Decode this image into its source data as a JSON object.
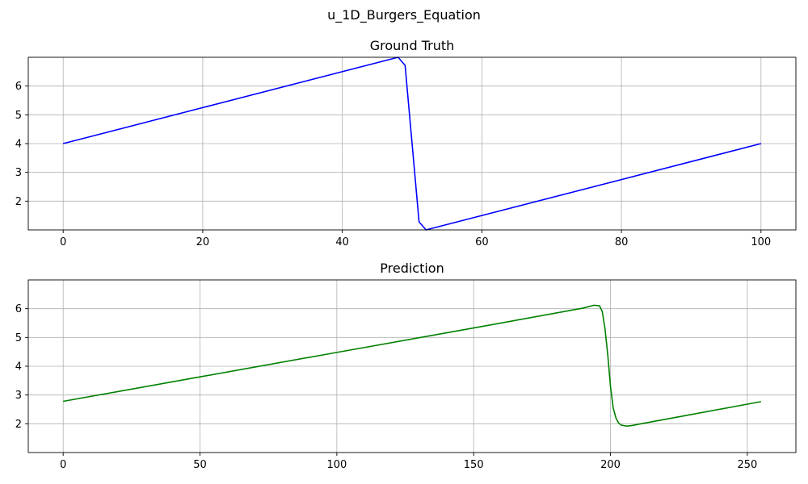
{
  "figure": {
    "suptitle": "u_1D_Burgers_Equation"
  },
  "chart_data": [
    {
      "type": "line",
      "title": "Ground Truth",
      "xlabel": "",
      "ylabel": "",
      "xlim": [
        -5,
        105
      ],
      "ylim": [
        1.0,
        7.0
      ],
      "xticks": [
        0,
        20,
        40,
        60,
        80,
        100
      ],
      "yticks": [
        2,
        3,
        4,
        5,
        6
      ],
      "grid": true,
      "series": [
        {
          "color": "#0000ff",
          "x": [
            0,
            48,
            49,
            51,
            52,
            100
          ],
          "y": [
            4.0,
            7.0,
            6.72,
            1.28,
            1.0,
            4.0
          ]
        }
      ]
    },
    {
      "type": "line",
      "title": "Prediction",
      "xlabel": "",
      "ylabel": "",
      "xlim": [
        -12.75,
        267.75
      ],
      "ylim": [
        1.0,
        7.0
      ],
      "xticks": [
        0,
        50,
        100,
        150,
        200,
        250
      ],
      "yticks": [
        2,
        3,
        4,
        5,
        6
      ],
      "grid": true,
      "series": [
        {
          "color": "#008000",
          "x": [
            0,
            50,
            100,
            150,
            190,
            194,
            196,
            197,
            198,
            199,
            200,
            201,
            202,
            203,
            204,
            206,
            208,
            210,
            230,
            255
          ],
          "y": [
            2.78,
            3.63,
            4.48,
            5.33,
            6.02,
            6.12,
            6.1,
            5.9,
            5.3,
            4.4,
            3.3,
            2.55,
            2.2,
            2.02,
            1.95,
            1.92,
            1.94,
            1.98,
            2.33,
            2.77
          ]
        }
      ]
    }
  ]
}
